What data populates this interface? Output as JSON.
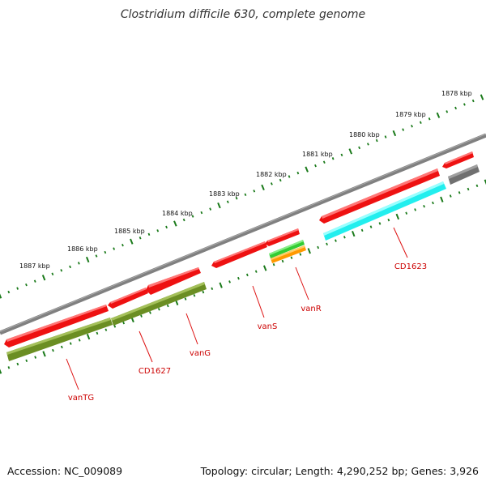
{
  "title": "Clostridium difficile 630, complete genome",
  "footer": {
    "accession": "Accession: NC_009089",
    "stats": "Topology: circular; Length: 4,290,252 bp; Genes: 3,926"
  },
  "scale_labels": [
    "1878 kbp",
    "1879 kbp",
    "1880 kbp",
    "1881 kbp",
    "1882 kbp",
    "1883 kbp",
    "1884 kbp",
    "1885 kbp",
    "1886 kbp",
    "1887 kbp"
  ],
  "gene_labels": [
    "CD1623",
    "vanR",
    "vanS",
    "vanG",
    "CD1627",
    "vanTG"
  ],
  "colors": {
    "backbone": "#808080",
    "scale_ticks": "#1a7a1a",
    "cds": "#ee1111",
    "gene": "#6b8e23",
    "cyan_feature": "#22eeee",
    "green_feature": "#33cc33",
    "orange_feature": "#ff9900",
    "gray_feature": "#707070",
    "gene_label": "#cc0000"
  }
}
